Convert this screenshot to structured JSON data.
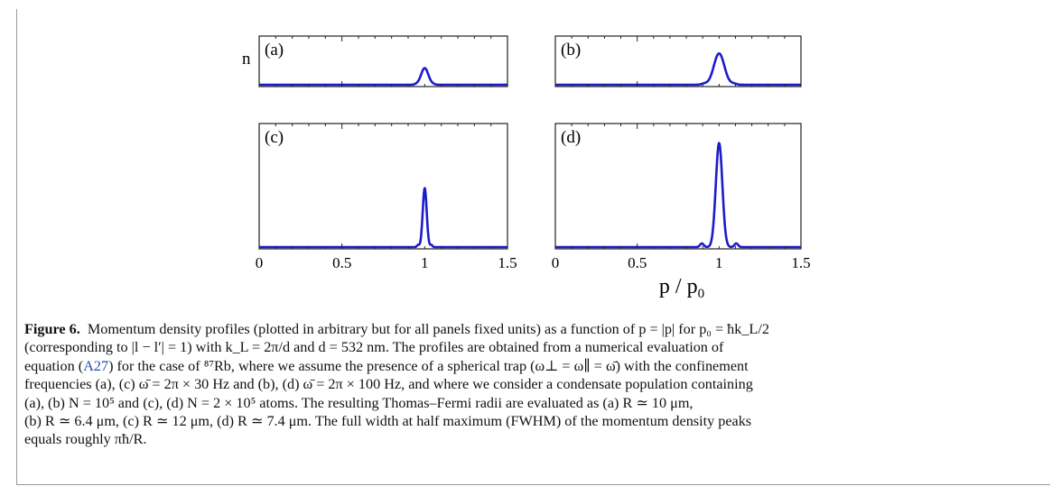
{
  "figure": {
    "panels": [
      {
        "id": "a",
        "label": "(a)"
      },
      {
        "id": "b",
        "label": "(b)"
      },
      {
        "id": "c",
        "label": "(c)"
      },
      {
        "id": "d",
        "label": "(d)"
      }
    ],
    "ylabel": "n",
    "xlabel_main": "p / p",
    "xlabel_sub": "0",
    "xticks": [
      "0",
      "0.5",
      "1",
      "1.5"
    ],
    "line_color": "#1c1ccc"
  },
  "chart_data": [
    {
      "type": "line",
      "panel": "(a)",
      "xlim": [
        0,
        1.5
      ],
      "peak_x": 1.0,
      "peak_height": 0.33
    },
    {
      "type": "line",
      "panel": "(b)",
      "xlim": [
        0,
        1.5
      ],
      "peak_x": 1.0,
      "peak_height": 0.62
    },
    {
      "type": "line",
      "panel": "(c)",
      "xlim": [
        0,
        1.5
      ],
      "peak_x": 1.0,
      "peak_height": 0.47
    },
    {
      "type": "line",
      "panel": "(d)",
      "xlim": [
        0,
        1.5
      ],
      "peak_x": 1.0,
      "peak_height": 0.83
    }
  ],
  "caption": {
    "figure_label": "Figure 6.",
    "line1": "Momentum density profiles (plotted in arbitrary but for all panels fixed units) as a function of p = |p| for p₀ = ħk_L/2",
    "line2": "(corresponding to |l − l′| = 1) with k_L = 2π/d and d = 532 nm. The profiles are obtained from a numerical evaluation of",
    "line3a": "equation (",
    "line3_ref": "A27",
    "line3b": ") for the case of ⁸⁷Rb, where we assume the presence of a spherical trap (ω⊥ = ω∥ = ω̄) with the confinement",
    "line4": "frequencies (a), (c) ω̄ = 2π × 30 Hz and (b), (d) ω̄ = 2π × 100 Hz, and where we consider a condensate population containing",
    "line5": "(a), (b) N = 10⁵ and (c), (d) N = 2 × 10⁵ atoms. The resulting Thomas–Fermi radii are evaluated as (a) R ≃ 10 μm,",
    "line6": "(b) R ≃ 6.4 μm, (c) R ≃ 12 μm, (d) R ≃ 7.4 μm. The full width at half maximum (FWHM) of the momentum density peaks",
    "line7": "equals roughly πħ/R."
  }
}
